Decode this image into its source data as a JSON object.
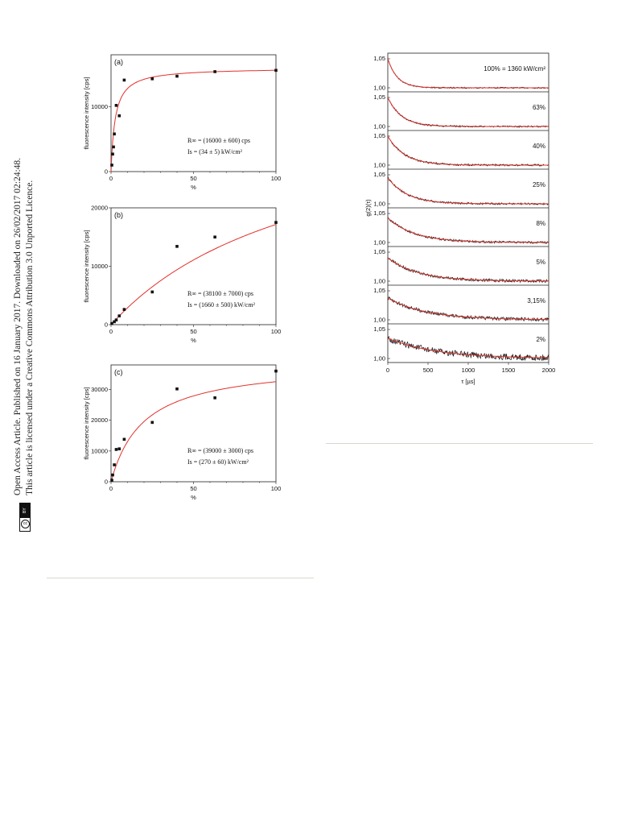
{
  "sidebar": {
    "line1": "Open Access Article. Published on 16 January 2017. Downloaded on 26/02/2017 02:24:48.",
    "line2": "This article is licensed under a Creative Commons Attribution 3.0 Unported Licence.",
    "badge_cc": "cc",
    "badge_by": "BY"
  },
  "chart_data": [
    {
      "type": "scatter",
      "panel": "(a)",
      "xlabel": "%",
      "ylabel": "fluorescence intensity [cps]",
      "xticks": [
        "0",
        "50",
        "100"
      ],
      "yticks": [
        "0",
        "10000"
      ],
      "xlim": [
        0,
        100
      ],
      "ylim": [
        0,
        18000
      ],
      "x": [
        0.5,
        1,
        1.5,
        2,
        3.15,
        5,
        8,
        25,
        40,
        63,
        100
      ],
      "y": [
        1000,
        2700,
        3800,
        5800,
        10200,
        8600,
        14100,
        14300,
        14700,
        15400,
        15600
      ],
      "fit": {
        "model": "saturation",
        "Rinf": 16000,
        "Is": 34,
        "Imax": 1360
      },
      "annotation1": "R∞ = (16000 ± 600) cps",
      "annotation2": "Is = (34 ± 5) kW/cm²"
    },
    {
      "type": "scatter",
      "panel": "(b)",
      "xlabel": "%",
      "ylabel": "fluorescence intensity [cps]",
      "xticks": [
        "0",
        "50",
        "100"
      ],
      "yticks": [
        "0",
        "10000",
        "20000"
      ],
      "xlim": [
        0,
        100
      ],
      "ylim": [
        0,
        20000
      ],
      "x": [
        0.5,
        2,
        3.15,
        5,
        8,
        25,
        40,
        63,
        100
      ],
      "y": [
        200,
        500,
        800,
        1500,
        2600,
        5600,
        13400,
        15000,
        17500
      ],
      "fit": {
        "model": "saturation",
        "Rinf": 38100,
        "Is": 1660,
        "Imax": 1360
      },
      "annotation1": "R∞ = (38100 ± 7000) cps",
      "annotation2": "Is = (1660 ± 500) kW/cm²"
    },
    {
      "type": "scatter",
      "panel": "(c)",
      "xlabel": "%",
      "ylabel": "fluorescence intensity [cps]",
      "xticks": [
        "0",
        "50",
        "100"
      ],
      "yticks": [
        "0",
        "10000",
        "20000",
        "30000"
      ],
      "xlim": [
        0,
        100
      ],
      "ylim": [
        0,
        38000
      ],
      "x": [
        0.5,
        1,
        2,
        3.15,
        5,
        8,
        25,
        40,
        63,
        100
      ],
      "y": [
        500,
        2200,
        5500,
        10500,
        10700,
        13800,
        19300,
        30200,
        27300,
        36000
      ],
      "fit": {
        "model": "saturation",
        "Rinf": 39000,
        "Is": 270,
        "Imax": 1360
      },
      "annotation1": "R∞ = (39000 ± 3000) cps",
      "annotation2": "Is = (270 ± 60) kW/cm²"
    },
    {
      "type": "line",
      "panel": "g2",
      "xlabel": "τ [µs]",
      "ylabel": "g(2)(τ)",
      "xticks": [
        "0",
        "500",
        "1000",
        "1500",
        "2000"
      ],
      "xlim": [
        0,
        2000
      ],
      "yticks_per_panel": [
        "1,00",
        "1,05"
      ],
      "series": [
        {
          "name": "100% = 1360 kW/cm²",
          "tau": 120,
          "amp": 1.0,
          "noise": 0.05
        },
        {
          "name": "63%",
          "tau": 170,
          "amp": 1.0,
          "noise": 0.06
        },
        {
          "name": "40%",
          "tau": 210,
          "amp": 1.0,
          "noise": 0.07
        },
        {
          "name": "25%",
          "tau": 240,
          "amp": 0.9,
          "noise": 0.08
        },
        {
          "name": "8%",
          "tau": 330,
          "amp": 0.85,
          "noise": 0.1
        },
        {
          "name": "5%",
          "tau": 380,
          "amp": 0.8,
          "noise": 0.14
        },
        {
          "name": "3,15%",
          "tau": 480,
          "amp": 0.75,
          "noise": 0.18
        },
        {
          "name": "2%",
          "tau": 600,
          "amp": 0.7,
          "noise": 0.35
        }
      ]
    }
  ]
}
